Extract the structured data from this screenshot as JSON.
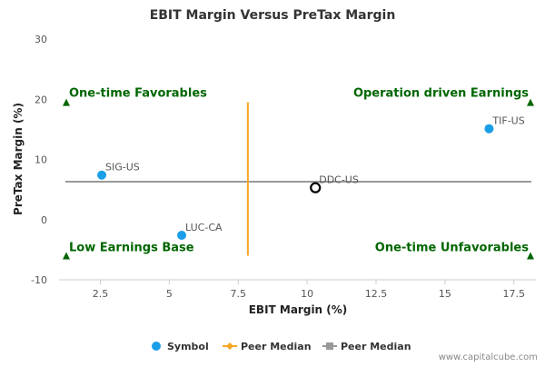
{
  "chart_data": {
    "type": "scatter",
    "title": "EBIT Margin Versus PreTax Margin",
    "xlabel": "EBIT Margin (%)",
    "ylabel": "PreTax Margin (%)",
    "xlim": [
      1.0,
      18.3
    ],
    "ylim": [
      -10,
      30
    ],
    "x_ticks": [
      "2.5",
      "5",
      "7.5",
      "10",
      "12.5",
      "15",
      "17.5"
    ],
    "x_tick_values": [
      2.5,
      5,
      7.5,
      10,
      12.5,
      15,
      17.5
    ],
    "y_ticks": [
      "30",
      "20",
      "10",
      "0",
      "-10"
    ],
    "y_tick_values": [
      30,
      20,
      10,
      0,
      -10
    ],
    "points": [
      {
        "label": "SIG-US",
        "x": 2.55,
        "y": 7.4
      },
      {
        "label": "LUC-CA",
        "x": 5.45,
        "y": -2.6
      },
      {
        "label": "TIF-US",
        "x": 16.6,
        "y": 15.1
      },
      {
        "label": "DDC-US",
        "x": 10.3,
        "y": 5.3,
        "highlight": true
      }
    ],
    "peer_median_x": 7.85,
    "peer_median_x_range": [
      -6,
      19.5
    ],
    "peer_median_y": 6.3,
    "quadrant_labels": {
      "top_left": "One-time Favorables",
      "top_right": "Operation driven Earnings",
      "bottom_left": "Low Earnings Base",
      "bottom_right": "One-time Unfavorables"
    },
    "quadrant_marker_y": {
      "top": 19.5,
      "bottom": -6
    },
    "legend": [
      {
        "label": "Symbol",
        "marker": "circle",
        "color": "#1a9ee8"
      },
      {
        "label": "Peer Median",
        "marker": "diamond",
        "color": "#f5a623"
      },
      {
        "label": "Peer Median",
        "marker": "square",
        "color": "#999999"
      }
    ],
    "colors": {
      "point": "#1a9ee8",
      "highlight_stroke": "#000000",
      "median_x": "#f5a623",
      "median_y": "#999999",
      "quadrant": "#006600"
    }
  },
  "credit": "www.capitalcube.com"
}
